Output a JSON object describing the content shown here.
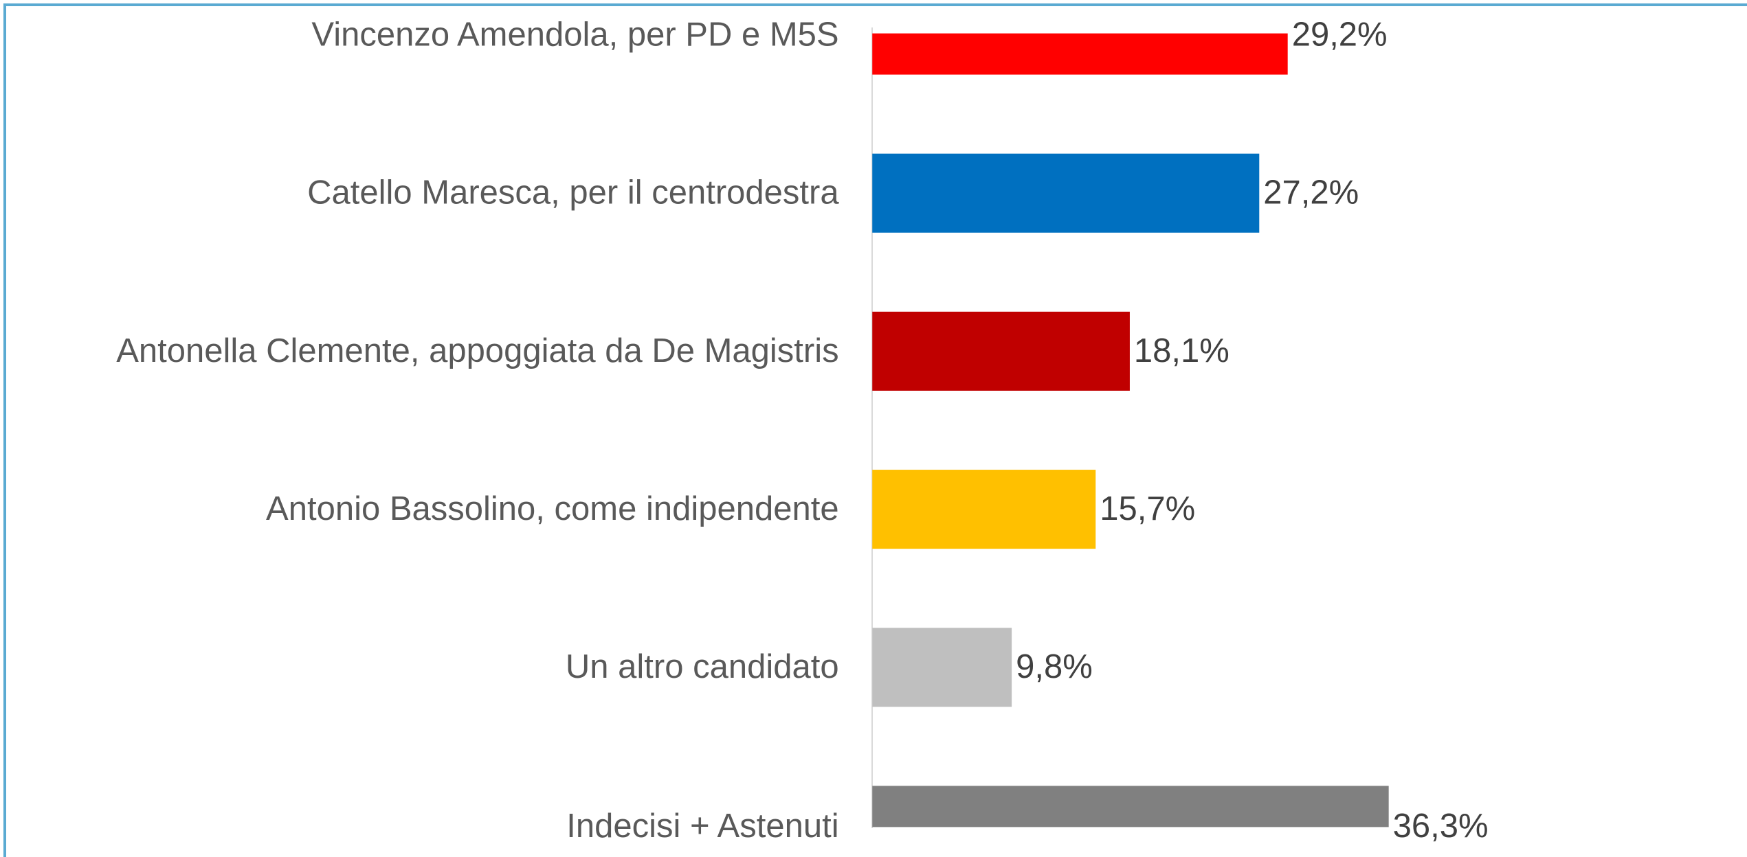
{
  "chart_data": {
    "type": "hbar",
    "categories": [
      "Vincenzo Amendola, per PD e M5S",
      "Catello Maresca, per il centrodestra",
      "Antonella Clemente, appoggiata da De Magistris",
      "Antonio Bassolino, come indipendente",
      "Un altro candidato",
      "Indecisi + Astenuti"
    ],
    "values": [
      29.2,
      27.2,
      18.1,
      15.7,
      9.8,
      36.3
    ],
    "value_labels": [
      "29,2%",
      "27,2%",
      "18,1%",
      "15,7%",
      "9,8%",
      "36,3%"
    ],
    "colors": [
      "#ff0000",
      "#0070c0",
      "#c00000",
      "#ffc000",
      "#bfbfbf",
      "#808080"
    ]
  }
}
